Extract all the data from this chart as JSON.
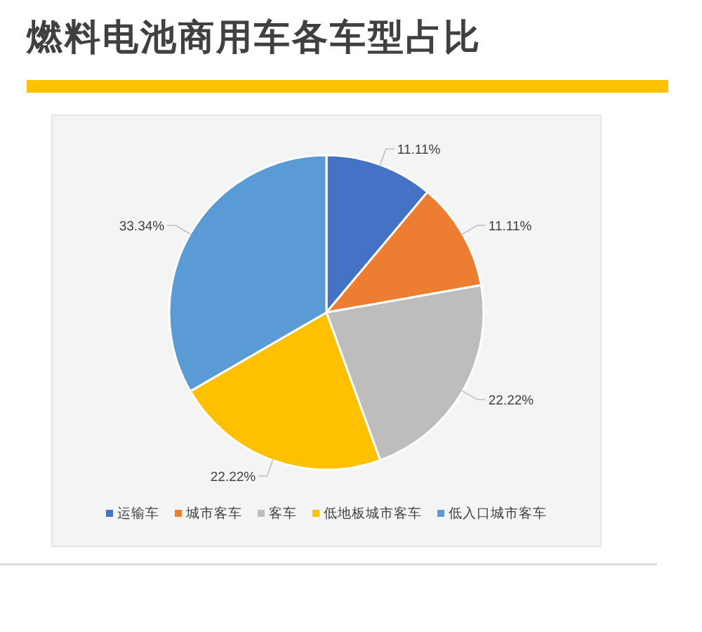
{
  "chart_data": {
    "type": "pie",
    "title": "燃料电池商用车各车型占比",
    "categories": [
      "运输车",
      "城市客车",
      "客车",
      "低地板城市客车",
      "低入口城市客车"
    ],
    "values": [
      11.11,
      11.11,
      22.22,
      22.22,
      33.34
    ],
    "colors": [
      "#4472c4",
      "#ed7d31",
      "#bdbdbd",
      "#ffc000",
      "#5b9bd5"
    ],
    "value_labels": [
      "11.11%",
      "11.11%",
      "22.22%",
      "22.22%",
      "33.34%"
    ],
    "legend": "bottom"
  }
}
